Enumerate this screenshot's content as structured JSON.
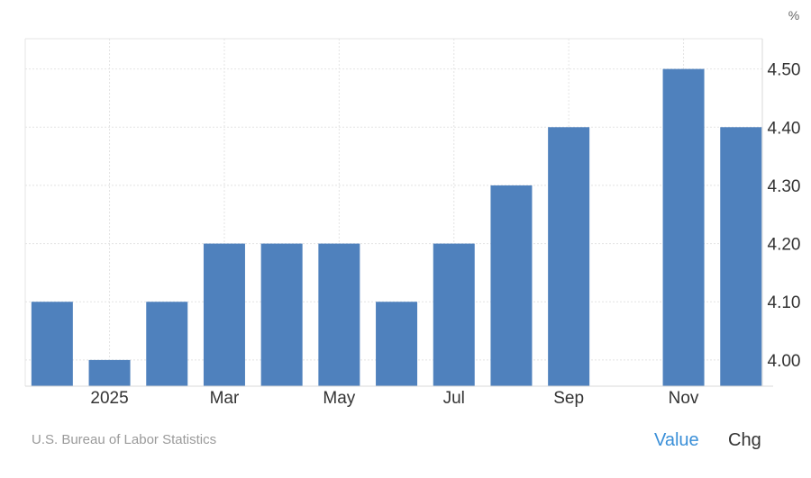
{
  "unit_label": "%",
  "source": "U.S. Bureau of Labor Statistics",
  "tabs": {
    "value": "Value",
    "chg": "Chg"
  },
  "colors": {
    "bar": "#4f81bd",
    "grid": "#e4e4e4",
    "axis_text": "#333333"
  },
  "chart_data": {
    "type": "bar",
    "x": [
      "2024-12",
      "2025-01",
      "2025-02",
      "2025-03",
      "2025-04",
      "2025-05",
      "2025-06",
      "2025-07",
      "2025-08",
      "2025-09",
      "2025-10",
      "2025-11",
      "2025-12"
    ],
    "values": [
      4.1,
      4.0,
      4.1,
      4.2,
      4.2,
      4.2,
      4.1,
      4.2,
      4.3,
      4.4,
      null,
      4.5,
      4.4
    ],
    "x_tick_labels": [
      {
        "x": "2025-01",
        "label": "2025"
      },
      {
        "x": "2025-03",
        "label": "Mar"
      },
      {
        "x": "2025-05",
        "label": "May"
      },
      {
        "x": "2025-07",
        "label": "Jul"
      },
      {
        "x": "2025-09",
        "label": "Sep"
      },
      {
        "x": "2025-11",
        "label": "Nov"
      }
    ],
    "y_ticks": [
      "4.00",
      "4.10",
      "4.20",
      "4.30",
      "4.40",
      "4.50"
    ],
    "ylim": [
      3.955,
      4.552
    ],
    "y_axis_position": "right",
    "grid": true
  }
}
